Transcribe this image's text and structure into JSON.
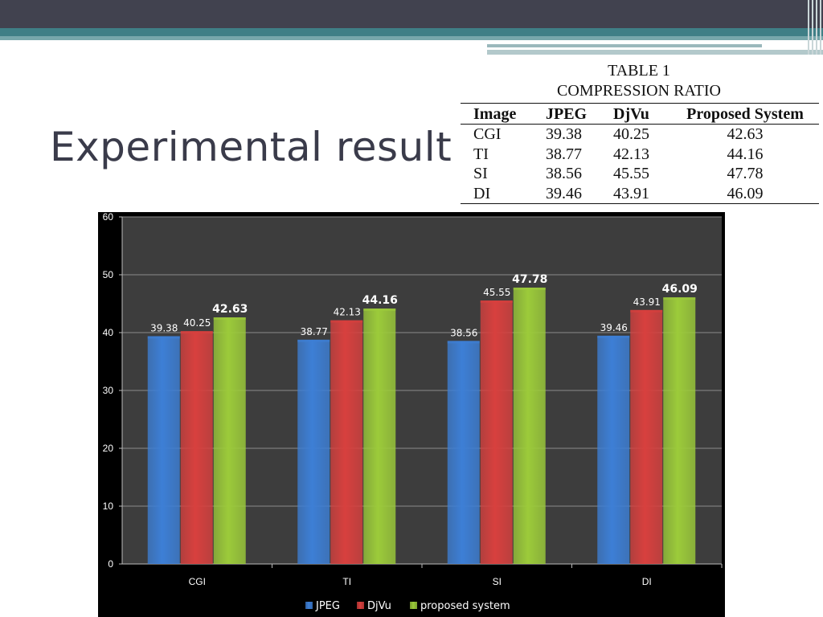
{
  "slide": {
    "title": "Experimental result"
  },
  "table": {
    "caption_line1": "TABLE 1",
    "caption_line2": "COMPRESSION RATIO",
    "headers": [
      "Image",
      "JPEG",
      "DjVu",
      "Proposed System"
    ],
    "rows": [
      [
        "CGI",
        "39.38",
        "40.25",
        "42.63"
      ],
      [
        "TI",
        "38.77",
        "42.13",
        "44.16"
      ],
      [
        "SI",
        "38.56",
        "45.55",
        "47.78"
      ],
      [
        "DI",
        "39.46",
        "43.91",
        "46.09"
      ]
    ]
  },
  "chart_data": {
    "type": "bar",
    "categories": [
      "CGI",
      "TI",
      "SI",
      "DI"
    ],
    "series": [
      {
        "name": "JPEG",
        "values": [
          39.38,
          38.77,
          38.56,
          39.46
        ],
        "color": "#3d7fd6"
      },
      {
        "name": "DjVu",
        "values": [
          40.25,
          42.13,
          45.55,
          43.91
        ],
        "color": "#d8403e"
      },
      {
        "name": "proposed system",
        "values": [
          42.63,
          44.16,
          47.78,
          46.09
        ],
        "color": "#9ccb3a"
      }
    ],
    "title": "",
    "xlabel": "",
    "ylabel": "",
    "ylim": [
      0,
      60
    ],
    "yticks": [
      0,
      10,
      20,
      30,
      40,
      50,
      60
    ],
    "grid": true,
    "legend_position": "bottom",
    "plot_background": "#3d3d3d",
    "chart_background": "#000000"
  }
}
